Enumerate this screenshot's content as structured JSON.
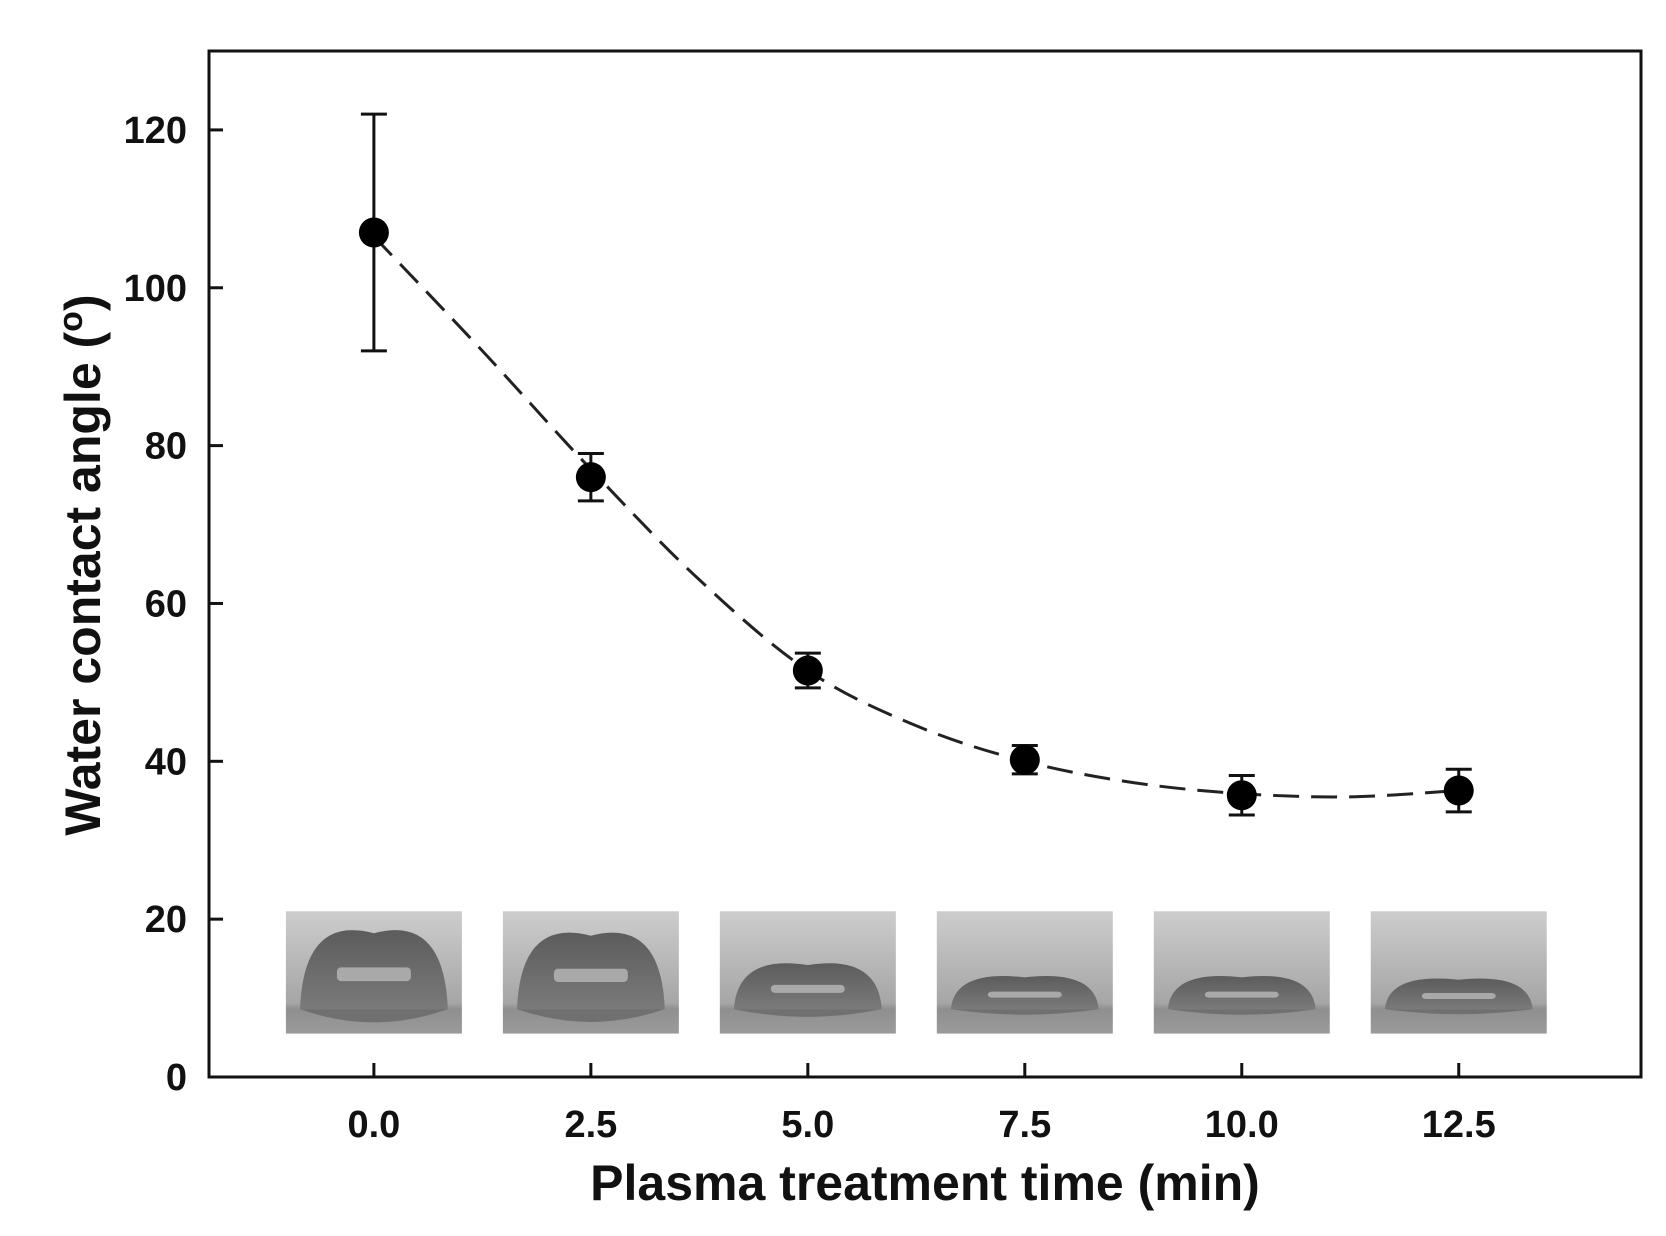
{
  "chart_data": {
    "type": "scatter",
    "title": "",
    "xlabel": "Plasma treatment time (min)",
    "ylabel_main": "Water contact angle (",
    "ylabel_sup": "o",
    "ylabel_end": ")",
    "xlim": [
      -1.9,
      14.6
    ],
    "ylim": [
      0,
      130
    ],
    "x_ticks": [
      0.0,
      2.5,
      5.0,
      7.5,
      10.0,
      12.5
    ],
    "x_tick_labels": [
      "0.0",
      "2.5",
      "5.0",
      "7.5",
      "10.0",
      "12.5"
    ],
    "y_ticks": [
      0,
      20,
      40,
      60,
      80,
      100,
      120
    ],
    "y_tick_labels": [
      "0",
      "20",
      "40",
      "60",
      "80",
      "100",
      "120"
    ],
    "grid": false,
    "series": [
      {
        "name": "Water contact angle",
        "x": [
          0.0,
          2.5,
          5.0,
          7.5,
          10.0,
          12.5
        ],
        "y": [
          107,
          76,
          51.5,
          40.2,
          35.7,
          36.3
        ],
        "y_err": [
          15,
          3,
          2.2,
          1.8,
          2.5,
          2.7
        ]
      }
    ],
    "fit_curve": {
      "style": "dashed",
      "x": [
        0,
        1.25,
        2.5,
        3.75,
        5.0,
        6.25,
        7.5,
        8.75,
        10.0,
        11.25,
        12.5
      ],
      "y": [
        106.5,
        92,
        77,
        63,
        51.5,
        44.5,
        40.0,
        37.3,
        35.9,
        35.5,
        36.3
      ]
    },
    "insets": [
      {
        "x": 0.0,
        "label": "droplet-image-0.0",
        "drop_height": 0.62
      },
      {
        "x": 2.5,
        "label": "droplet-image-2.5",
        "drop_height": 0.6
      },
      {
        "x": 5.0,
        "label": "droplet-image-5.0",
        "drop_height": 0.36
      },
      {
        "x": 7.5,
        "label": "droplet-image-7.5",
        "drop_height": 0.26
      },
      {
        "x": 10.0,
        "label": "droplet-image-10.0",
        "drop_height": 0.26
      },
      {
        "x": 12.5,
        "label": "droplet-image-12.5",
        "drop_height": 0.24
      }
    ],
    "colors": {
      "axis": "#111111",
      "marker": "#000000",
      "line": "#222222",
      "inset_top": "#c4c4c4",
      "inset_bottom": "#8a8a8a",
      "drop": "#6e6e6e",
      "drop_highlight": "#bdbdbd"
    }
  }
}
